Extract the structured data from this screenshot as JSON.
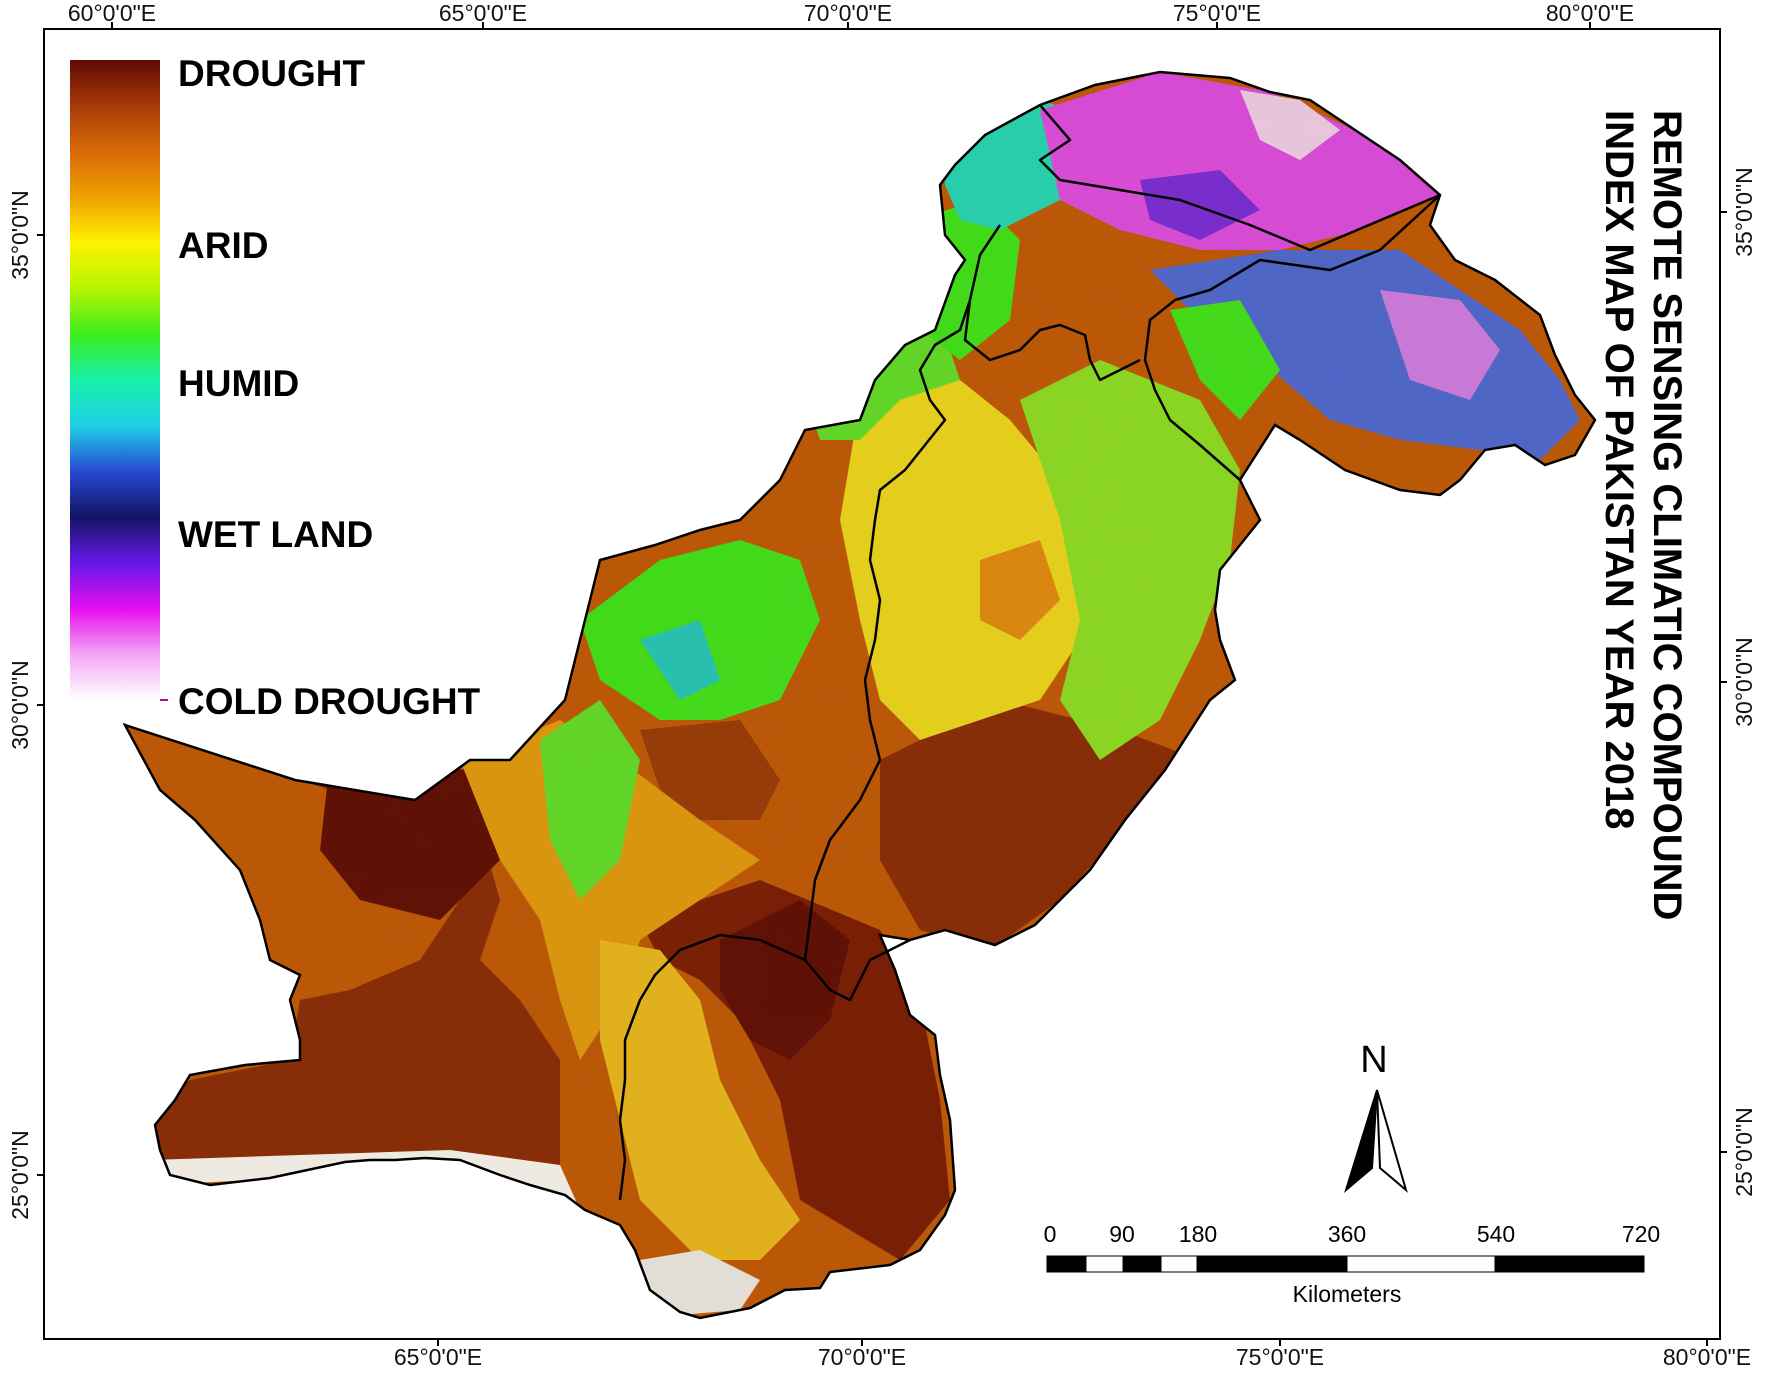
{
  "map": {
    "title_line1": "REMOTE SENSING  CLIMATIC COMPOUND",
    "title_line2": "INDEX MAP OF PAKISTAN YEAR 2018",
    "graticule": {
      "lon_labels": [
        "60°0'0\"E",
        "65°0'0\"E",
        "70°0'0\"E",
        "75°0'0\"E",
        "80°0'0\"E"
      ],
      "lat_labels": [
        "35°0'0\"N",
        "30°0'0\"N",
        "25°0'0\"N"
      ]
    },
    "legend": {
      "items": [
        "DROUGHT",
        "ARID",
        "HUMID",
        "WET LAND",
        "COLD DROUGHT"
      ],
      "gradient_colors": [
        "#5e0a06",
        "#a83a08",
        "#d86a08",
        "#f0a000",
        "#fff200",
        "#b6f400",
        "#3ded1e",
        "#17f0a8",
        "#1ed0e6",
        "#2848d2",
        "#141466",
        "#6418e8",
        "#e60ef0",
        "#f2a6f4",
        "#ffffff"
      ]
    },
    "north_arrow": {
      "label": "N"
    },
    "scale_bar": {
      "labels": [
        "0",
        "90",
        "180",
        "360",
        "540",
        "720"
      ],
      "unit": "Kilometers"
    },
    "colors": {
      "drought": "#8a2a08",
      "arid": "#f2dd10",
      "humid": "#5fe82c",
      "wet_land": "#2a3acc",
      "cold_drought": "#e44cf0"
    }
  }
}
